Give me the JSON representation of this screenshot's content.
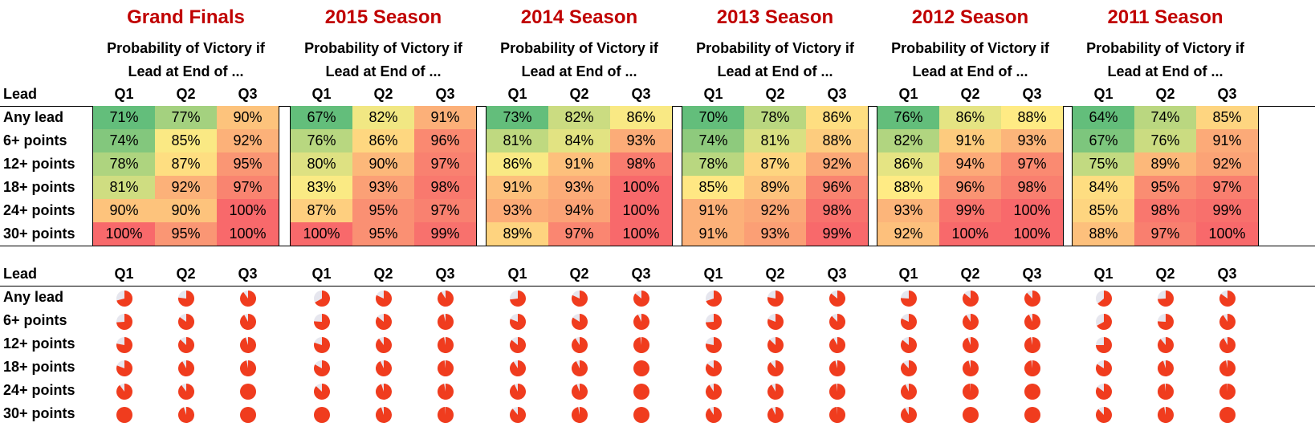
{
  "lead_label": "Lead",
  "quarters": [
    "Q1",
    "Q2",
    "Q3"
  ],
  "row_labels": [
    "Any lead",
    "6+ points",
    "12+ points",
    "18+ points",
    "24+ points",
    "30+ points"
  ],
  "subtitle_line1": "Probability of Victory if",
  "subtitle_line2": "Lead at End of ...",
  "colors": {
    "title": "#c00000",
    "pie": "#f03c1e",
    "pie_rest": "#e6e6ee",
    "scale_low": "#63be7b",
    "scale_mid": "#ffeb84",
    "scale_high": "#f8696b"
  },
  "chart_data": [
    {
      "type": "table",
      "title": "Grand Finals",
      "values": [
        [
          71,
          77,
          90
        ],
        [
          74,
          85,
          92
        ],
        [
          78,
          87,
          95
        ],
        [
          81,
          92,
          97
        ],
        [
          90,
          90,
          100
        ],
        [
          100,
          95,
          100
        ]
      ],
      "labels": [
        [
          "71%",
          "77%",
          "90%"
        ],
        [
          "74%",
          "85%",
          "92%"
        ],
        [
          "78%",
          "87%",
          "95%"
        ],
        [
          "81%",
          "92%",
          "97%"
        ],
        [
          "90%",
          "90%",
          "100%"
        ],
        [
          "100%",
          "95%",
          "100%"
        ]
      ]
    },
    {
      "type": "table",
      "title": "2015 Season",
      "values": [
        [
          67,
          82,
          91
        ],
        [
          76,
          86,
          96
        ],
        [
          80,
          90,
          97
        ],
        [
          83,
          93,
          98
        ],
        [
          87,
          95,
          97
        ],
        [
          100,
          95,
          99
        ]
      ],
      "labels": [
        [
          "67%",
          "82%",
          "91%"
        ],
        [
          "76%",
          "86%",
          "96%"
        ],
        [
          "80%",
          "90%",
          "97%"
        ],
        [
          "83%",
          "93%",
          "98%"
        ],
        [
          "87%",
          "95%",
          "97%"
        ],
        [
          "100%",
          "95%",
          "99%"
        ]
      ]
    },
    {
      "type": "table",
      "title": "2014 Season",
      "values": [
        [
          73,
          82,
          86
        ],
        [
          81,
          84,
          93
        ],
        [
          86,
          91,
          98
        ],
        [
          91,
          93,
          100
        ],
        [
          93,
          94,
          100
        ],
        [
          89,
          97,
          100
        ]
      ],
      "labels": [
        [
          "73%",
          "82%",
          "86%"
        ],
        [
          "81%",
          "84%",
          "93%"
        ],
        [
          "86%",
          "91%",
          "98%"
        ],
        [
          "91%",
          "93%",
          "100%"
        ],
        [
          "93%",
          "94%",
          "100%"
        ],
        [
          "89%",
          "97%",
          "100%"
        ]
      ]
    },
    {
      "type": "table",
      "title": "2013 Season",
      "values": [
        [
          70,
          78,
          86
        ],
        [
          74,
          81,
          88
        ],
        [
          78,
          87,
          92
        ],
        [
          85,
          89,
          96
        ],
        [
          91,
          92,
          98
        ],
        [
          91,
          93,
          99
        ]
      ],
      "labels": [
        [
          "70%",
          "78%",
          "86%"
        ],
        [
          "74%",
          "81%",
          "88%"
        ],
        [
          "78%",
          "87%",
          "92%"
        ],
        [
          "85%",
          "89%",
          "96%"
        ],
        [
          "91%",
          "92%",
          "98%"
        ],
        [
          "91%",
          "93%",
          "99%"
        ]
      ]
    },
    {
      "type": "table",
      "title": "2012 Season",
      "values": [
        [
          76,
          86,
          88
        ],
        [
          82,
          91,
          93
        ],
        [
          86,
          94,
          97
        ],
        [
          88,
          96,
          98
        ],
        [
          93,
          99,
          100
        ],
        [
          92,
          100,
          100
        ]
      ],
      "labels": [
        [
          "76%",
          "86%",
          "88%"
        ],
        [
          "82%",
          "91%",
          "93%"
        ],
        [
          "86%",
          "94%",
          "97%"
        ],
        [
          "88%",
          "96%",
          "98%"
        ],
        [
          "93%",
          "99%",
          "100%"
        ],
        [
          "92%",
          "100%",
          "100%"
        ]
      ]
    },
    {
      "type": "table",
      "title": "2011 Season",
      "values": [
        [
          64,
          74,
          85
        ],
        [
          67,
          76,
          91
        ],
        [
          75,
          89,
          92
        ],
        [
          84,
          95,
          97
        ],
        [
          85,
          98,
          99
        ],
        [
          88,
          97,
          100
        ]
      ],
      "labels": [
        [
          "64%",
          "74%",
          "85%"
        ],
        [
          "67%",
          "76%",
          "91%"
        ],
        [
          "75%",
          "89%",
          "92%"
        ],
        [
          "84%",
          "95%",
          "97%"
        ],
        [
          "85%",
          "98%",
          "99%"
        ],
        [
          "88%",
          "97%",
          "100%"
        ]
      ]
    }
  ]
}
